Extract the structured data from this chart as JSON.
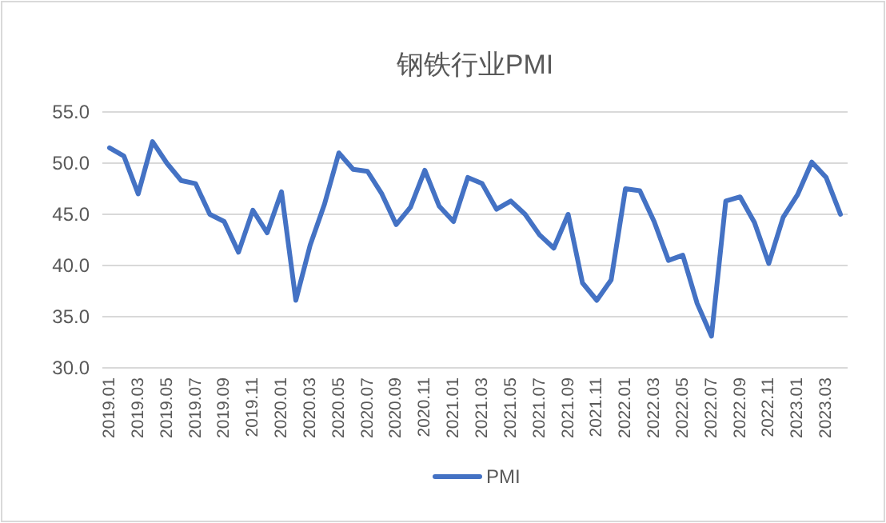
{
  "chart_data": {
    "type": "line",
    "title": "钢铁行业PMI",
    "categories": [
      "2019.01",
      null,
      "2019.03",
      null,
      "2019.05",
      null,
      "2019.07",
      null,
      "2019.09",
      null,
      "2019.11",
      null,
      "2020.01",
      null,
      "2020.03",
      null,
      "2020.05",
      null,
      "2020.07",
      null,
      "2020.09",
      null,
      "2020.11",
      null,
      "2021.01",
      null,
      "2021.03",
      null,
      "2021.05",
      null,
      "2021.07",
      null,
      "2021.09",
      null,
      "2021.11",
      null,
      "2022.01",
      null,
      "2022.03",
      null,
      "2022.05",
      null,
      "2022.07",
      null,
      "2022.09",
      null,
      "2022.11",
      null,
      "2023.01",
      null,
      "2023.03",
      null
    ],
    "series": [
      {
        "name": "PMI",
        "color": "#4472c4",
        "values": [
          51.5,
          50.7,
          47.0,
          52.1,
          50.0,
          48.3,
          48.0,
          45.0,
          44.3,
          41.3,
          45.4,
          43.2,
          47.2,
          36.6,
          42.0,
          46.0,
          51.0,
          49.4,
          49.2,
          47.0,
          44.0,
          45.7,
          49.3,
          45.8,
          44.3,
          48.6,
          48.0,
          45.5,
          46.3,
          45.0,
          43.0,
          41.7,
          45.0,
          38.3,
          36.6,
          38.6,
          47.5,
          47.3,
          44.3,
          40.5,
          41.0,
          36.3,
          33.1,
          46.3,
          46.7,
          44.2,
          40.2,
          44.7,
          46.9,
          50.1,
          48.6,
          45.0
        ]
      }
    ],
    "ylim": [
      30,
      55
    ],
    "yticks": [
      {
        "value": 30,
        "label": "30.0"
      },
      {
        "value": 35,
        "label": "35.0"
      },
      {
        "value": 40,
        "label": "40.0"
      },
      {
        "value": 45,
        "label": "45.0"
      },
      {
        "value": 50,
        "label": "50.0"
      },
      {
        "value": 55,
        "label": "55.0"
      }
    ],
    "grid": "y",
    "legend": "bottom",
    "marker": "none",
    "line_style": "solid"
  }
}
